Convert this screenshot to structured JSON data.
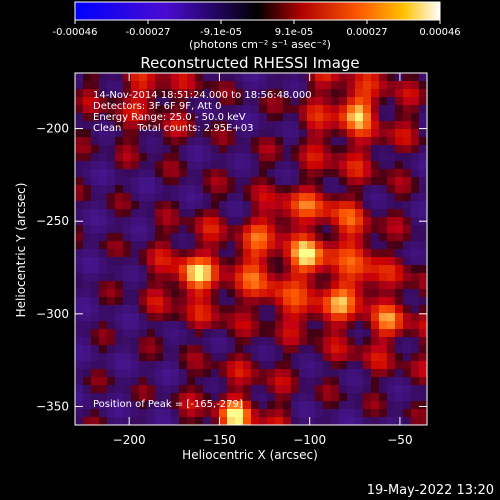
{
  "colorbar": {
    "tick_labels": [
      "-0.00046",
      "-0.00027",
      "-9.1e-05",
      "9.1e-05",
      "0.00027",
      "0.00046"
    ],
    "unit_label": "(photons cm⁻² s⁻¹ asec⁻²)",
    "range": [
      -0.00046,
      0.00046
    ]
  },
  "chart_data": {
    "type": "heatmap",
    "title": "Reconstructed RHESSI Image",
    "xlabel": "Heliocentric X (arcsec)",
    "ylabel": "Heliocentric Y (arcsec)",
    "xlim": [
      -230,
      -35
    ],
    "ylim": [
      -360,
      -170
    ],
    "x_ticks": [
      -200,
      -150,
      -100,
      -50
    ],
    "y_ticks": [
      -200,
      -250,
      -300,
      -350
    ],
    "colormap": "hot / blue-purple diverging",
    "sources": [
      {
        "x": -75,
        "y": -190,
        "amplitude": 1.0,
        "sigma": 18
      },
      {
        "x": -190,
        "y": -180,
        "amplitude": 0.6,
        "sigma": 20
      },
      {
        "x": -165,
        "y": -280,
        "amplitude": 0.95,
        "sigma": 16
      },
      {
        "x": -100,
        "y": -270,
        "amplitude": 1.0,
        "sigma": 28
      },
      {
        "x": -55,
        "y": -305,
        "amplitude": 0.6,
        "sigma": 18
      },
      {
        "x": -140,
        "y": -355,
        "amplitude": 0.9,
        "sigma": 16
      }
    ],
    "annotations": [
      "14-Nov-2014 18:51:24.000 to 18:56:48.000",
      "Detectors: 3F 6F 9F, Att 0",
      "Energy Range: 25.0 - 50.0 keV",
      "Clean     Total counts: 2.95E+03",
      "Position of Peak = [-165,-279]"
    ]
  },
  "footer": {
    "timestamp": "19-May-2022 13:20"
  }
}
